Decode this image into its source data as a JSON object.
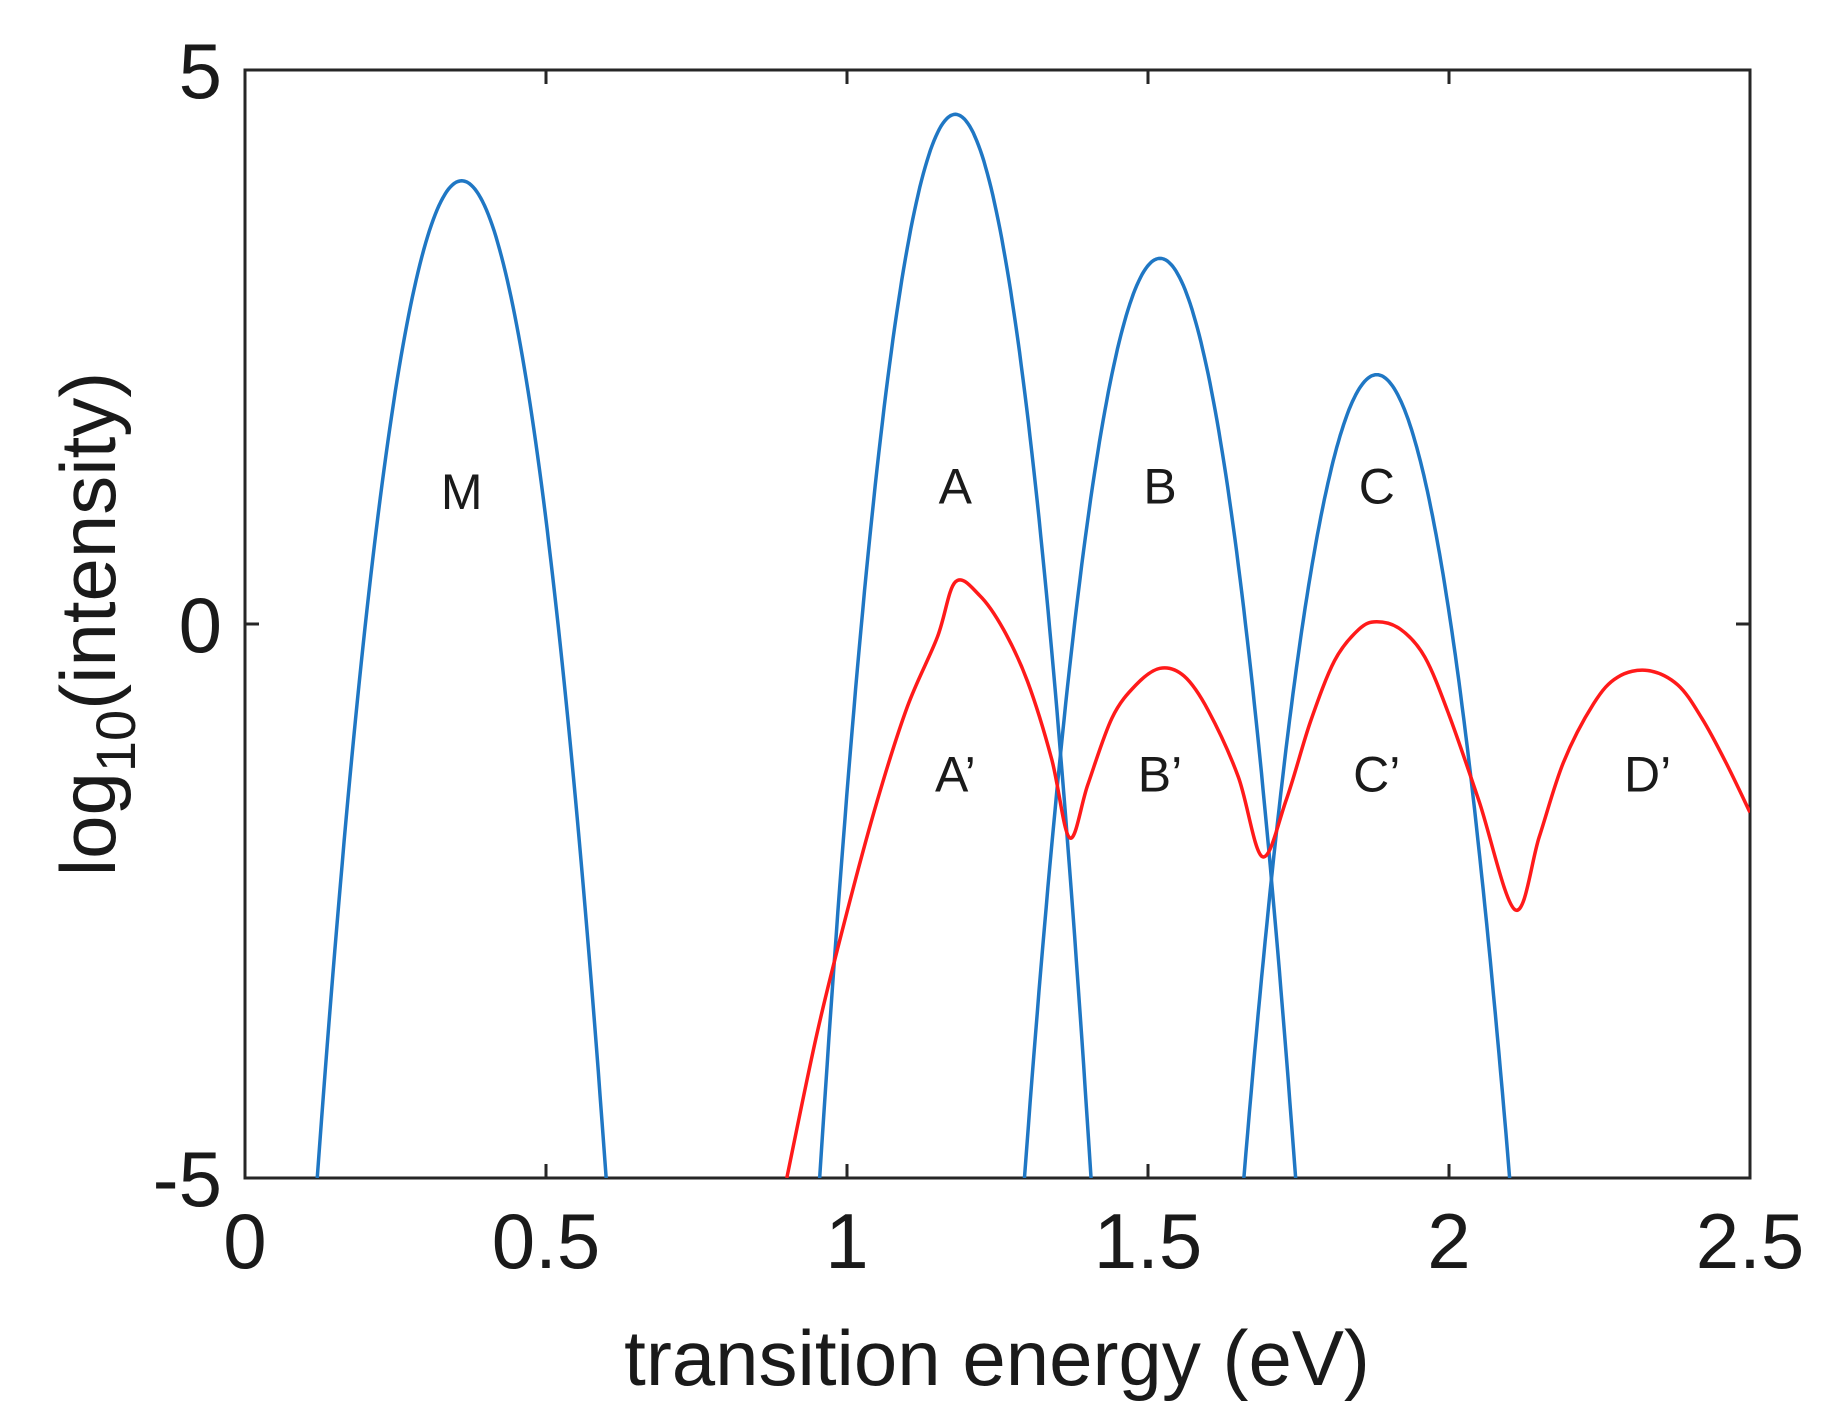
{
  "chart_data": {
    "type": "line",
    "title": "",
    "xlabel": "transition energy (eV)",
    "ylabel_main": "log",
    "ylabel_sub": "10",
    "ylabel_tail": "(intensity)",
    "xlim": [
      0,
      2.5
    ],
    "ylim": [
      -5,
      5
    ],
    "xticks": [
      0,
      0.5,
      1,
      1.5,
      2,
      2.5
    ],
    "xtick_labels": [
      "0",
      "0.5",
      "1",
      "1.5",
      "2",
      "2.5"
    ],
    "yticks": [
      -5,
      0,
      5
    ],
    "ytick_labels": [
      "-5",
      "0",
      "5"
    ],
    "grid": false,
    "series": [
      {
        "name": "blue",
        "color": "#1f77c4",
        "segments": [
          {
            "center": 0.36,
            "peak": 4.0,
            "zero_width": 0.16
          },
          {
            "center": 1.18,
            "peak": 4.6,
            "zero_width": 0.156
          },
          {
            "center": 1.52,
            "peak": 3.3,
            "zero_width": 0.142
          },
          {
            "center": 1.88,
            "peak": 2.25,
            "zero_width": 0.123
          }
        ]
      },
      {
        "name": "red",
        "color": "#ff1a1a",
        "x": [
          0.9,
          0.95,
          1.0,
          1.05,
          1.1,
          1.15,
          1.18,
          1.22,
          1.26,
          1.3,
          1.34,
          1.37,
          1.4,
          1.44,
          1.48,
          1.52,
          1.56,
          1.6,
          1.65,
          1.69,
          1.73,
          1.77,
          1.81,
          1.85,
          1.88,
          1.92,
          1.96,
          2.0,
          2.05,
          2.11,
          2.15,
          2.19,
          2.24,
          2.28,
          2.33,
          2.38,
          2.42,
          2.46,
          2.5
        ],
        "y": [
          -5.0,
          -3.7,
          -2.6,
          -1.6,
          -0.75,
          -0.12,
          0.38,
          0.26,
          -0.05,
          -0.52,
          -1.22,
          -1.93,
          -1.45,
          -0.85,
          -0.55,
          -0.4,
          -0.47,
          -0.78,
          -1.38,
          -2.1,
          -1.58,
          -0.88,
          -0.33,
          -0.05,
          0.02,
          -0.05,
          -0.3,
          -0.82,
          -1.6,
          -2.58,
          -1.92,
          -1.25,
          -0.72,
          -0.48,
          -0.42,
          -0.55,
          -0.85,
          -1.25,
          -1.7
        ]
      }
    ],
    "annotations": [
      {
        "text": "M",
        "x": 0.36,
        "y": 1.2
      },
      {
        "text": "A",
        "x": 1.18,
        "y": 1.25
      },
      {
        "text": "B",
        "x": 1.52,
        "y": 1.25
      },
      {
        "text": "C",
        "x": 1.88,
        "y": 1.25
      },
      {
        "text": "A’",
        "x": 1.18,
        "y": -1.35
      },
      {
        "text": "B’",
        "x": 1.52,
        "y": -1.35
      },
      {
        "text": "C’",
        "x": 1.88,
        "y": -1.35
      },
      {
        "text": "D’",
        "x": 2.33,
        "y": -1.35
      }
    ]
  }
}
